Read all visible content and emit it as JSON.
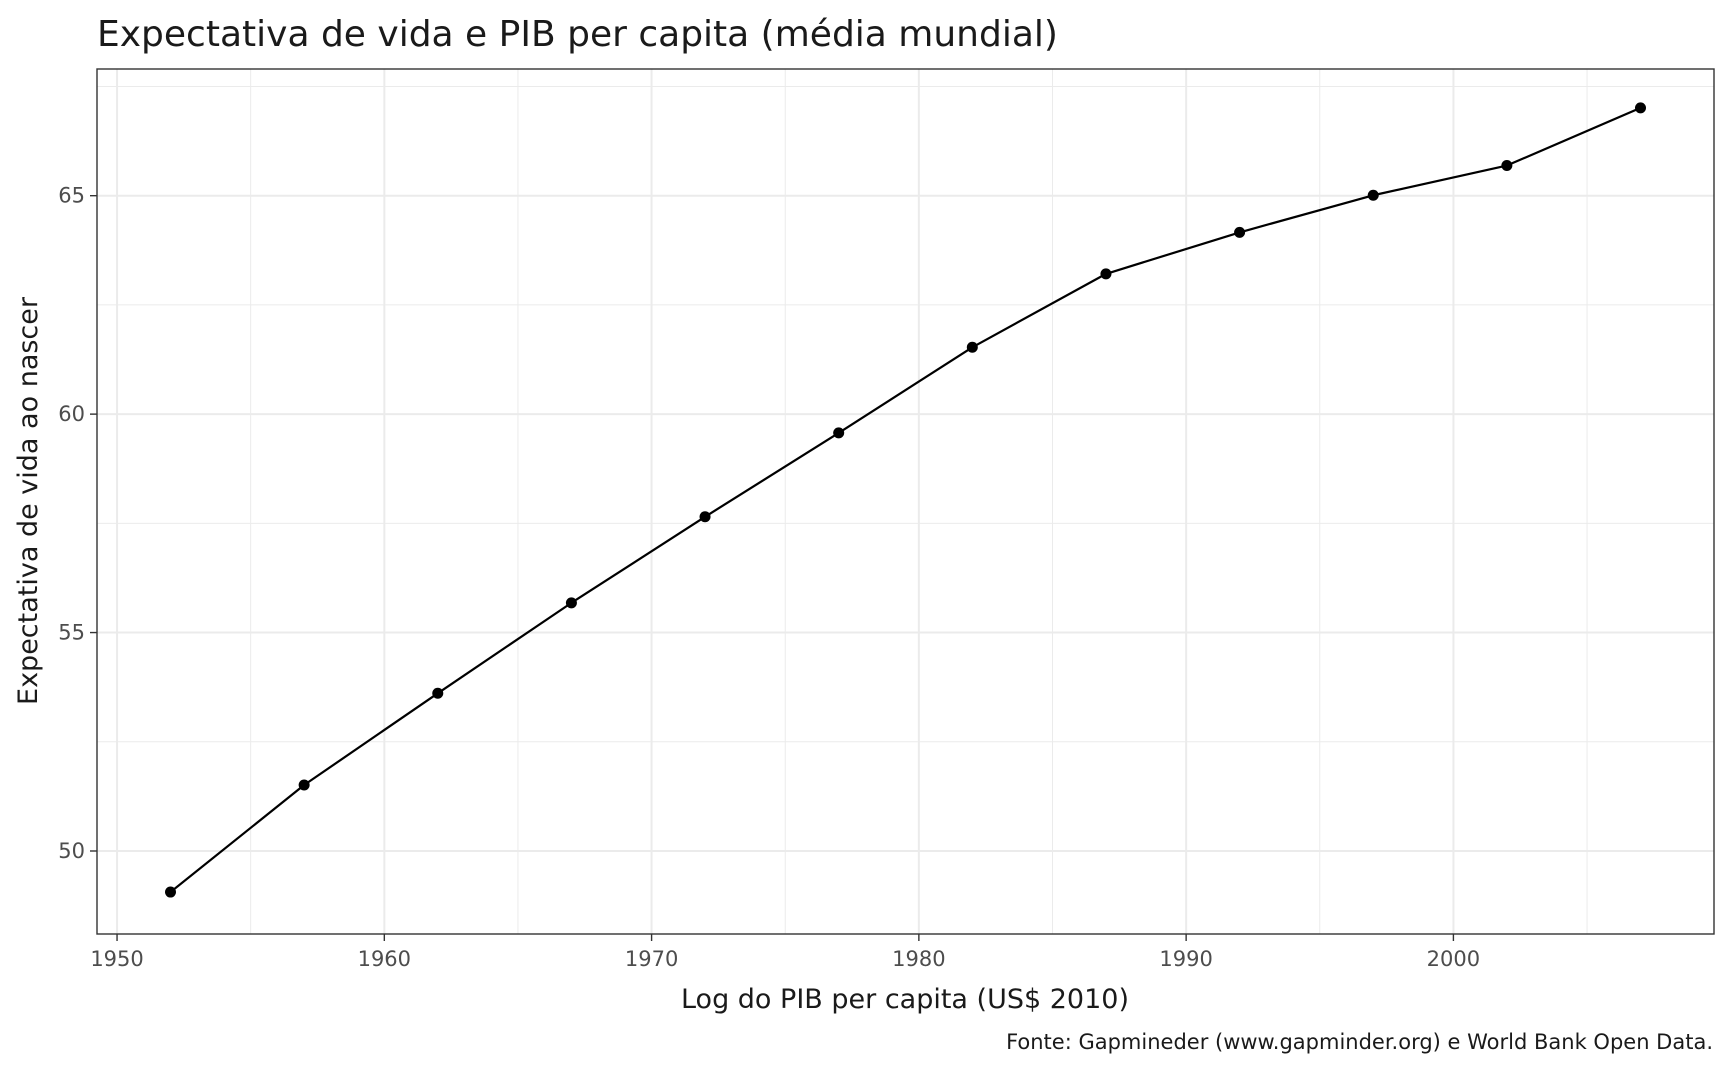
{
  "chart_data": {
    "type": "line",
    "title": "Expectativa de vida e PIB per capita (média mundial)",
    "xlabel": "Log do PIB per capita (US$ 2010)",
    "ylabel": "Expectativa de vida ao nascer",
    "caption": "Fonte: Gapmineder (www.gapminder.org) e World Bank Open Data.",
    "xlim": [
      1949.25,
      2009.75
    ],
    "ylim": [
      48.1,
      67.9
    ],
    "x_ticks": [
      1950,
      1960,
      1970,
      1980,
      1990,
      2000
    ],
    "x_tick_labels": [
      "1950",
      "1960",
      "1970",
      "1980",
      "1990",
      "2000"
    ],
    "y_ticks": [
      50,
      55,
      60,
      65
    ],
    "y_tick_labels": [
      "50",
      "55",
      "60",
      "65"
    ],
    "grid": true,
    "legend": "none",
    "colors": {
      "line": "#000000",
      "point": "#000000",
      "grid": "#ebebeb",
      "panel_border": "#333333"
    },
    "x": [
      1952,
      1957,
      1962,
      1967,
      1972,
      1977,
      1982,
      1987,
      1992,
      1997,
      2002,
      2007
    ],
    "values": [
      49.06,
      51.51,
      53.61,
      55.68,
      57.65,
      59.57,
      61.53,
      63.21,
      64.16,
      65.01,
      65.69,
      67.01
    ]
  }
}
